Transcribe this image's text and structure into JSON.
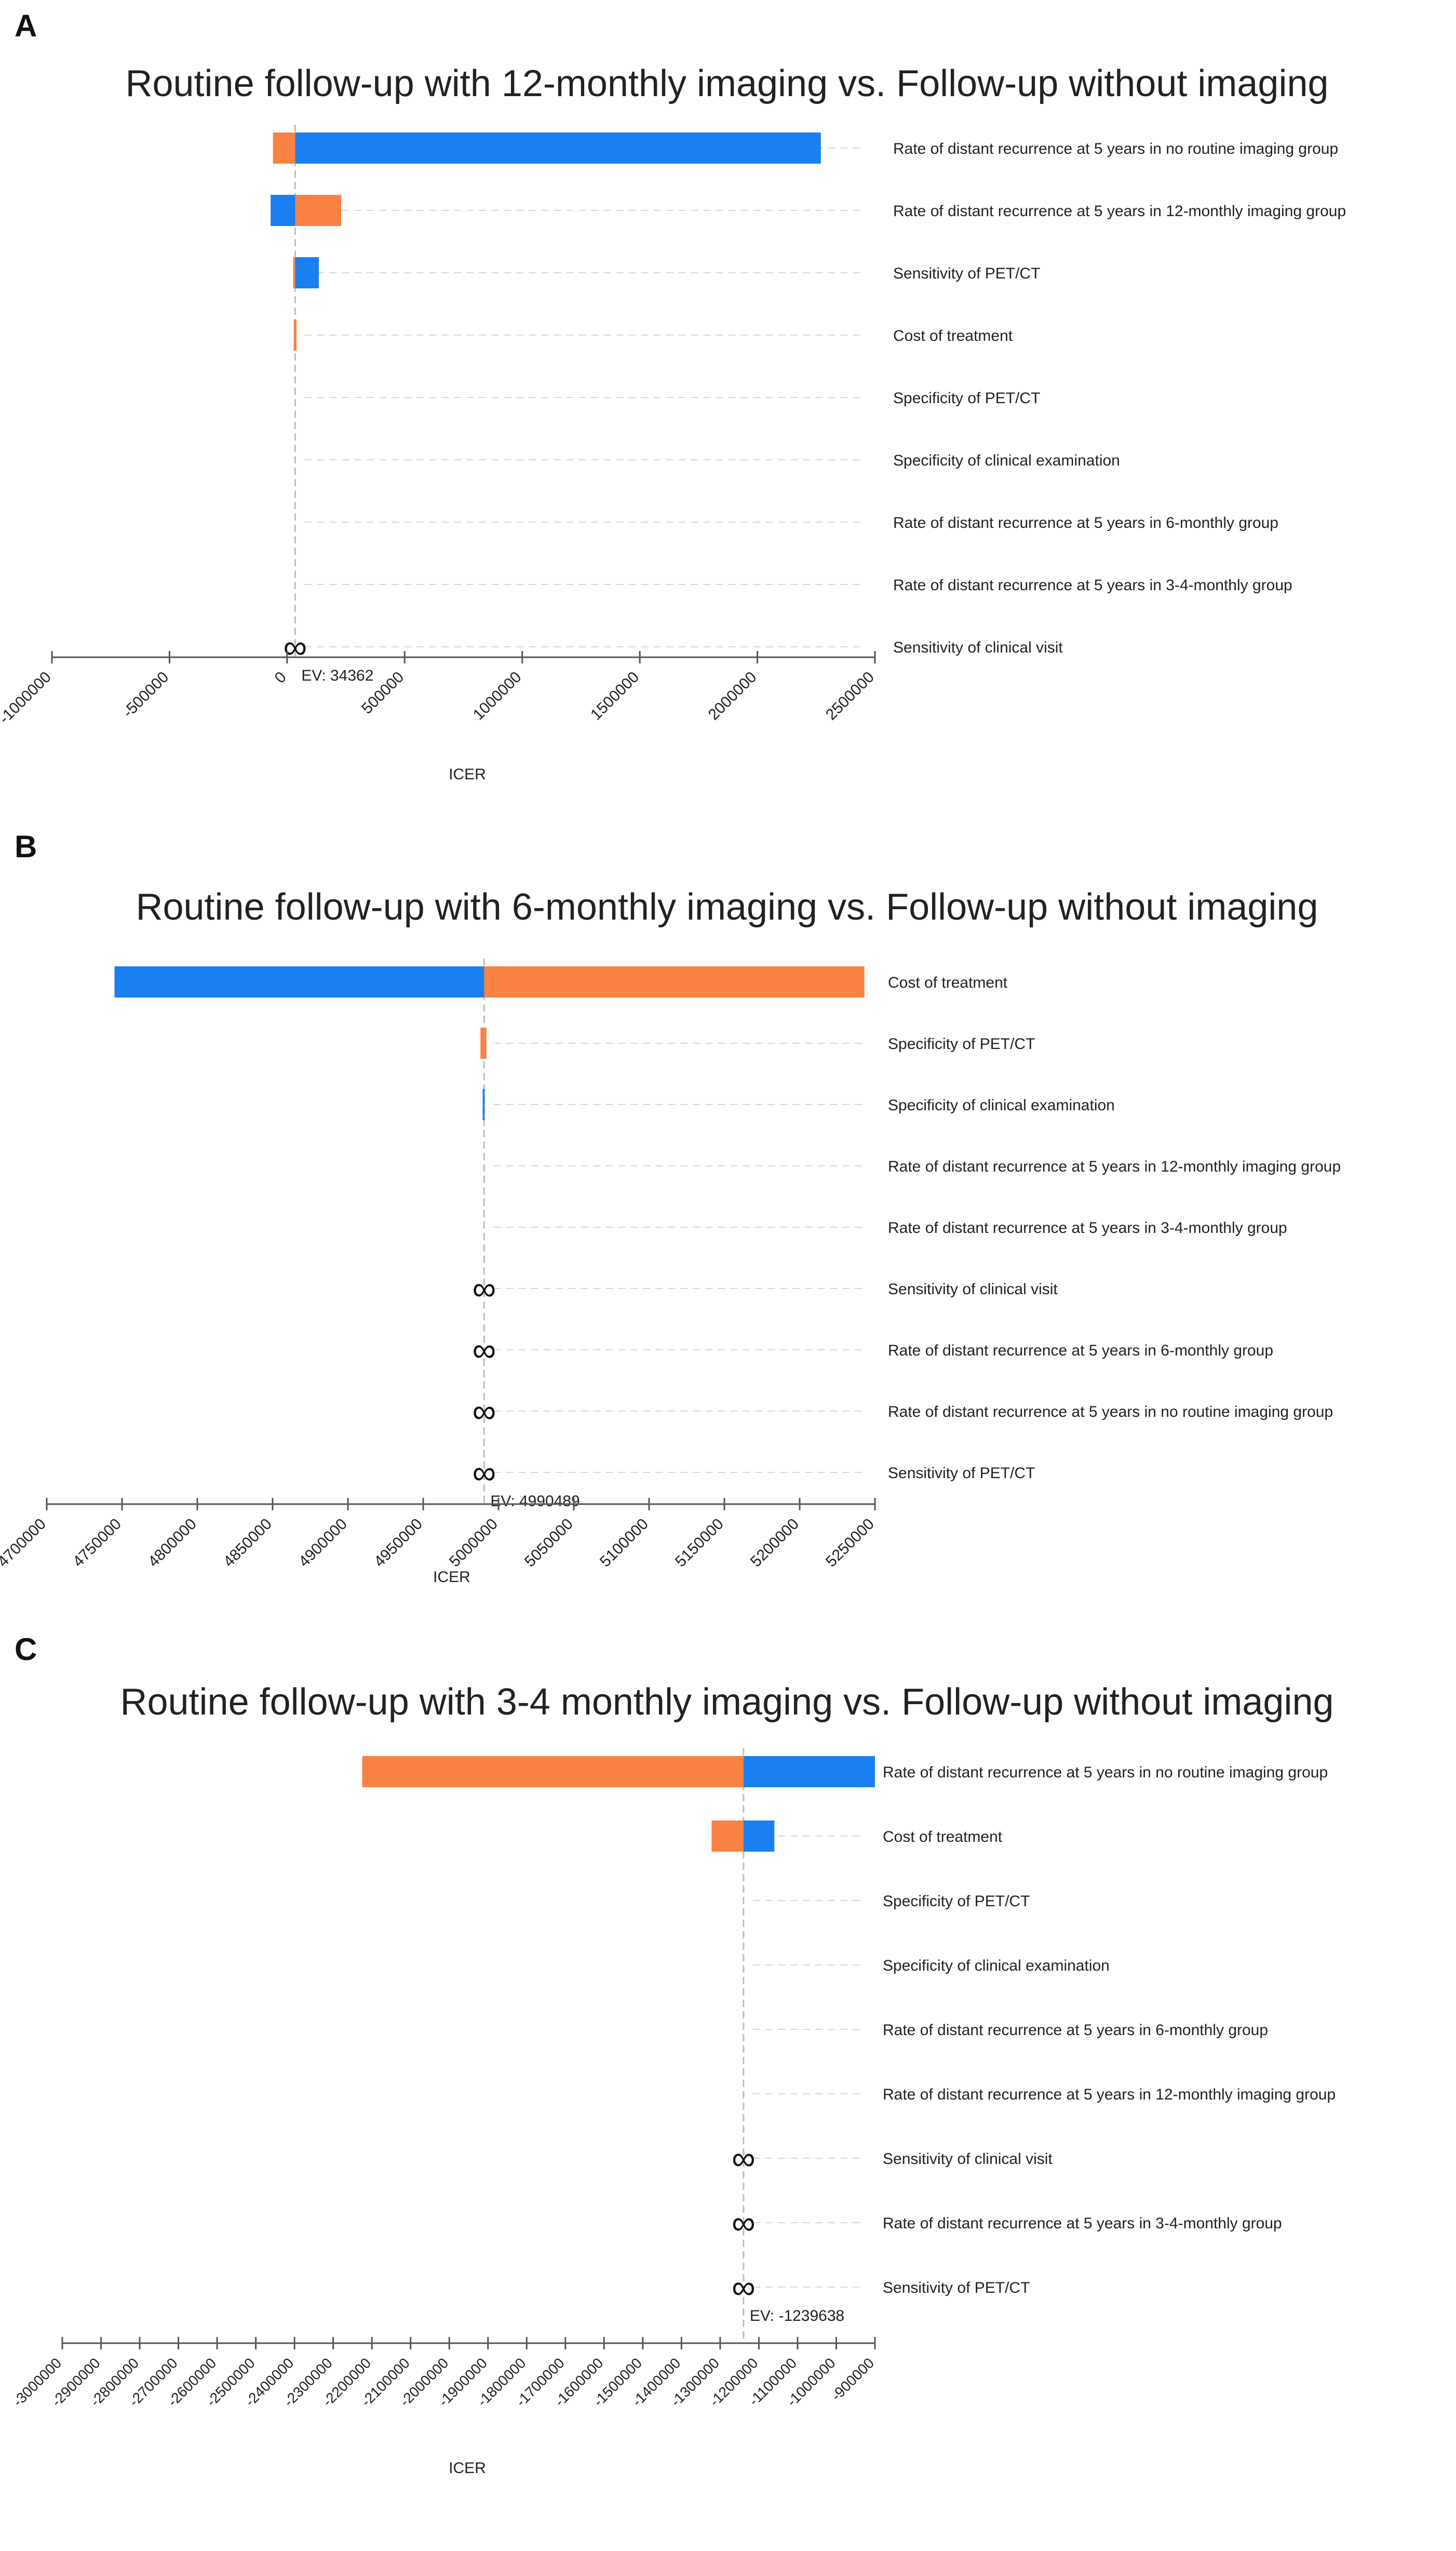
{
  "figure": {
    "panels": [
      {
        "letter": "A"
      },
      {
        "letter": "B"
      },
      {
        "letter": "C"
      }
    ]
  },
  "chart_data": [
    {
      "type": "bar",
      "subtype": "tornado",
      "panel": "A",
      "title": "Routine follow-up with 12-monthly imaging vs. Follow-up without imaging",
      "xlabel": "ICER",
      "ylabel": "",
      "xlim": [
        -1000000,
        2500000
      ],
      "ticks": [
        -1000000,
        -500000,
        0,
        500000,
        1000000,
        1500000,
        2000000,
        2500000
      ],
      "tick_labels": [
        "-1000000",
        "-500000",
        "0",
        "500000",
        "1000000",
        "1500000",
        "2000000",
        "2500000"
      ],
      "ev": 34362,
      "ev_label": "EV: 34362",
      "colors": {
        "blue": "#1a7ff0",
        "orange": "#f98142",
        "reference_line": "#bfbfbf",
        "dash": "#d9d9d9"
      },
      "legend": "none",
      "rows": [
        {
          "label": "Rate of distant recurrence at 5 years in no routine imaging group",
          "blue": [
            34362,
            2270000
          ],
          "orange": [
            -60000,
            34362
          ]
        },
        {
          "label": "Rate of distant recurrence at 5 years in 12-monthly imaging group",
          "blue": [
            -70000,
            34362
          ],
          "orange": [
            34362,
            230000
          ]
        },
        {
          "label": "Sensitivity of PET/CT",
          "blue": [
            34362,
            135000
          ],
          "orange": [
            26000,
            34362
          ]
        },
        {
          "label": "Cost of treatment",
          "blue": null,
          "orange": [
            28000,
            40000
          ]
        },
        {
          "label": "Specificity of PET/CT",
          "blue": null,
          "orange": null
        },
        {
          "label": "Specificity of clinical examination",
          "blue": null,
          "orange": null
        },
        {
          "label": "Rate of distant recurrence at 5 years in 6-monthly group",
          "blue": null,
          "orange": null
        },
        {
          "label": "Rate of distant recurrence at 5 years in 3-4-monthly group",
          "blue": null,
          "orange": null
        },
        {
          "label": "Sensitivity of clinical visit",
          "blue": null,
          "orange": null,
          "infinite": true
        }
      ]
    },
    {
      "type": "bar",
      "subtype": "tornado",
      "panel": "B",
      "title": "Routine follow-up with 6-monthly imaging vs. Follow-up without imaging",
      "xlabel": "ICER",
      "ylabel": "",
      "xlim": [
        4700000,
        5250000
      ],
      "ticks": [
        4700000,
        4750000,
        4800000,
        4850000,
        4900000,
        4950000,
        5000000,
        5050000,
        5100000,
        5150000,
        5200000,
        5250000
      ],
      "tick_labels": [
        "4700000",
        "4750000",
        "4800000",
        "4850000",
        "4900000",
        "4950000",
        "5000000",
        "5050000",
        "5100000",
        "5150000",
        "5200000",
        "5250000"
      ],
      "ev": 4990489,
      "ev_label": "EV: 4990489",
      "colors": {
        "blue": "#1a7ff0",
        "orange": "#f98142",
        "reference_line": "#bfbfbf",
        "dash": "#d9d9d9"
      },
      "legend": "none",
      "rows": [
        {
          "label": "Cost of treatment",
          "blue": [
            4745000,
            4990489
          ],
          "orange": [
            4990489,
            5243000
          ]
        },
        {
          "label": "Specificity of PET/CT",
          "blue": null,
          "orange": [
            4988000,
            4992000
          ]
        },
        {
          "label": "Specificity of clinical examination",
          "blue": [
            4989500,
            4990800
          ],
          "orange": null
        },
        {
          "label": "Rate of distant recurrence at 5 years in 12-monthly imaging group",
          "blue": null,
          "orange": null
        },
        {
          "label": "Rate of distant recurrence at 5 years in 3-4-monthly group",
          "blue": null,
          "orange": null
        },
        {
          "label": "Sensitivity of clinical visit",
          "blue": null,
          "orange": null,
          "infinite": true
        },
        {
          "label": "Rate of distant recurrence at 5 years in 6-monthly group",
          "blue": null,
          "orange": null,
          "infinite": true
        },
        {
          "label": "Rate of distant recurrence at 5 years in no routine imaging group",
          "blue": null,
          "orange": null,
          "infinite": true
        },
        {
          "label": "Sensitivity of PET/CT",
          "blue": null,
          "orange": null,
          "infinite": true
        }
      ]
    },
    {
      "type": "bar",
      "subtype": "tornado",
      "panel": "C",
      "title": "Routine follow-up with 3-4 monthly imaging vs. Follow-up without imaging",
      "xlabel": "ICER",
      "ylabel": "",
      "xlim": [
        -3000000,
        -900000
      ],
      "ticks": [
        -3000000,
        -2900000,
        -2800000,
        -2700000,
        -2600000,
        -2500000,
        -2400000,
        -2300000,
        -2200000,
        -2100000,
        -2000000,
        -1900000,
        -1800000,
        -1700000,
        -1600000,
        -1500000,
        -1400000,
        -1300000,
        -1200000,
        -1100000,
        -1000000,
        -900000
      ],
      "tick_labels": [
        "-3000000",
        "-2900000",
        "-2800000",
        "-2700000",
        "-2600000",
        "-2500000",
        "-2400000",
        "-2300000",
        "-2200000",
        "-2100000",
        "-2000000",
        "-1900000",
        "-1800000",
        "-1700000",
        "-1600000",
        "-1500000",
        "-1400000",
        "-1300000",
        "-1200000",
        "-1100000",
        "-1000000",
        "-900000"
      ],
      "ev": -1239638,
      "ev_label": "EV: -1239638",
      "colors": {
        "blue": "#1a7ff0",
        "orange": "#f98142",
        "reference_line": "#bfbfbf",
        "dash": "#d9d9d9"
      },
      "legend": "none",
      "rows": [
        {
          "label": "Rate of distant recurrence at 5 years in no routine imaging group",
          "blue": [
            -1239638,
            -900000
          ],
          "orange": [
            -2225000,
            -1239638
          ]
        },
        {
          "label": "Cost of treatment",
          "blue": [
            -1239638,
            -1160000
          ],
          "orange": [
            -1322000,
            -1239638
          ]
        },
        {
          "label": "Specificity of PET/CT",
          "blue": null,
          "orange": null
        },
        {
          "label": "Specificity of clinical examination",
          "blue": null,
          "orange": null
        },
        {
          "label": "Rate of distant recurrence at 5 years in 6-monthly group",
          "blue": null,
          "orange": null
        },
        {
          "label": "Rate of distant recurrence at 5 years in 12-monthly imaging group",
          "blue": null,
          "orange": null
        },
        {
          "label": "Sensitivity of clinical visit",
          "blue": null,
          "orange": null,
          "infinite": true
        },
        {
          "label": "Rate of distant recurrence at 5 years in 3-4-monthly group",
          "blue": null,
          "orange": null,
          "infinite": true
        },
        {
          "label": "Sensitivity of PET/CT",
          "blue": null,
          "orange": null,
          "infinite": true
        }
      ]
    }
  ]
}
